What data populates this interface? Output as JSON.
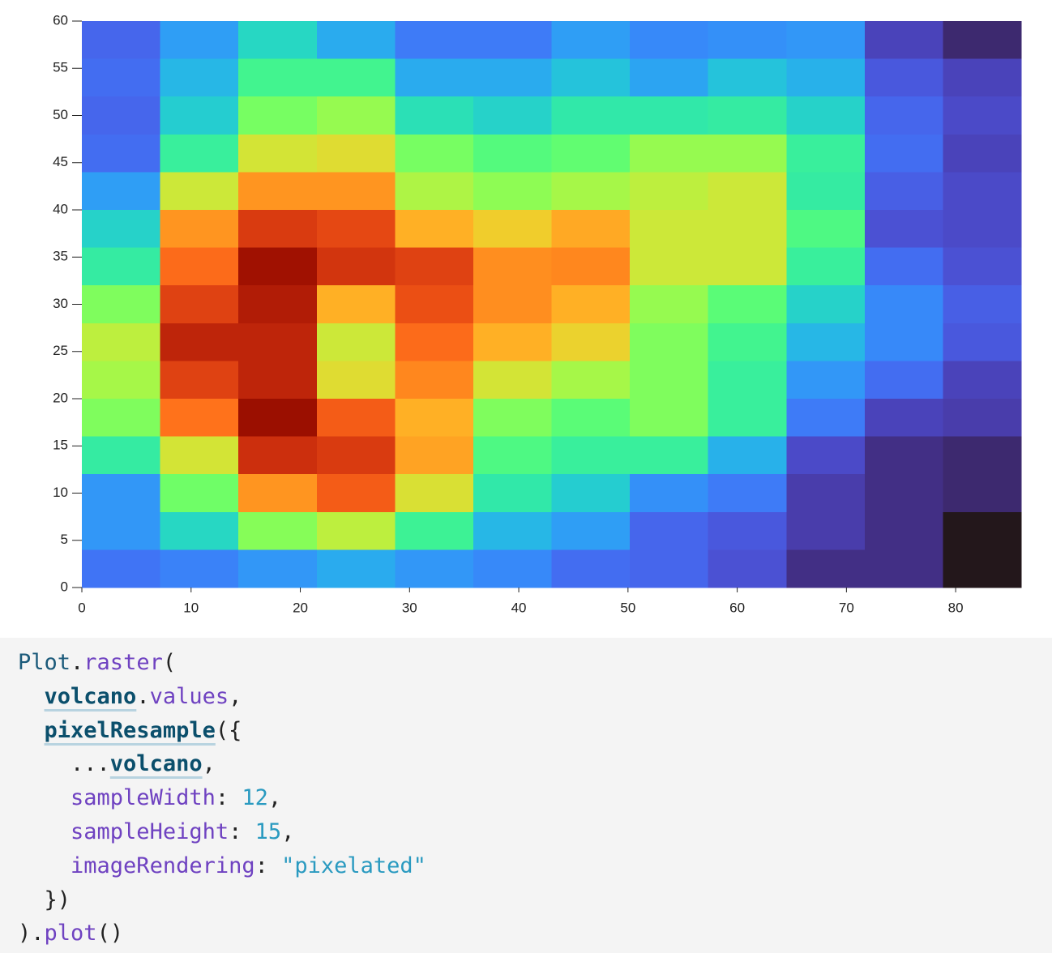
{
  "chart_data": {
    "type": "raster",
    "colormap": "turbo",
    "color_domain": [
      0,
      100
    ],
    "xlim": [
      0,
      86
    ],
    "ylim": [
      0,
      60
    ],
    "xticks": [
      0,
      10,
      20,
      30,
      40,
      50,
      60,
      70,
      80
    ],
    "yticks": [
      0,
      5,
      10,
      15,
      20,
      25,
      30,
      35,
      40,
      45,
      50,
      55,
      60
    ],
    "values": [
      [
        12,
        20,
        30,
        22,
        15,
        15,
        20,
        17,
        18,
        19,
        7,
        3
      ],
      [
        13,
        24,
        38,
        38,
        22,
        22,
        26,
        21,
        26,
        23,
        10,
        7
      ],
      [
        12,
        28,
        46,
        50,
        32,
        29,
        34,
        34,
        35,
        29,
        12,
        8
      ],
      [
        13,
        36,
        58,
        60,
        46,
        41,
        43,
        50,
        50,
        36,
        13,
        7
      ],
      [
        20,
        57,
        72,
        72,
        53,
        49,
        52,
        55,
        57,
        35,
        11,
        8
      ],
      [
        29,
        72,
        85,
        83,
        68,
        63,
        69,
        57,
        57,
        40,
        9,
        8
      ],
      [
        35,
        78,
        94,
        86,
        84,
        73,
        74,
        57,
        57,
        36,
        13,
        9
      ],
      [
        47,
        84,
        91,
        68,
        82,
        73,
        68,
        50,
        42,
        29,
        17,
        11
      ],
      [
        55,
        89,
        89,
        57,
        78,
        68,
        62,
        47,
        38,
        24,
        17,
        10
      ],
      [
        52,
        84,
        89,
        60,
        74,
        58,
        52,
        47,
        36,
        19,
        13,
        7
      ],
      [
        47,
        77,
        95,
        80,
        68,
        47,
        42,
        47,
        36,
        15,
        7,
        6
      ],
      [
        35,
        58,
        87,
        85,
        70,
        40,
        36,
        36,
        23,
        8,
        4,
        3
      ],
      [
        19,
        45,
        72,
        80,
        59,
        34,
        28,
        18,
        15,
        6,
        4,
        3
      ],
      [
        19,
        30,
        48,
        55,
        37,
        24,
        20,
        12,
        10,
        6,
        4,
        0
      ],
      [
        14,
        16,
        19,
        22,
        19,
        17,
        13,
        12,
        9,
        4,
        4,
        0
      ]
    ]
  },
  "code": {
    "lines": [
      [
        {
          "text": "Plot",
          "style": "obj"
        },
        {
          "text": ".",
          "style": "punct"
        },
        {
          "text": "raster",
          "style": "fn"
        },
        {
          "text": "(",
          "style": "punct"
        }
      ],
      [
        {
          "text": "  ",
          "style": "punct"
        },
        {
          "text": "volcano",
          "style": "var"
        },
        {
          "text": ".",
          "style": "punct"
        },
        {
          "text": "values",
          "style": "fn"
        },
        {
          "text": ",",
          "style": "punct"
        }
      ],
      [
        {
          "text": "  ",
          "style": "punct"
        },
        {
          "text": "pixelResample",
          "style": "var"
        },
        {
          "text": "({",
          "style": "punct"
        }
      ],
      [
        {
          "text": "    ...",
          "style": "punct"
        },
        {
          "text": "volcano",
          "style": "var"
        },
        {
          "text": ",",
          "style": "punct"
        }
      ],
      [
        {
          "text": "    ",
          "style": "punct"
        },
        {
          "text": "sampleWidth",
          "style": "fn"
        },
        {
          "text": ": ",
          "style": "punct"
        },
        {
          "text": "12",
          "style": "num"
        },
        {
          "text": ",",
          "style": "punct"
        }
      ],
      [
        {
          "text": "    ",
          "style": "punct"
        },
        {
          "text": "sampleHeight",
          "style": "fn"
        },
        {
          "text": ": ",
          "style": "punct"
        },
        {
          "text": "15",
          "style": "num"
        },
        {
          "text": ",",
          "style": "punct"
        }
      ],
      [
        {
          "text": "    ",
          "style": "punct"
        },
        {
          "text": "imageRendering",
          "style": "fn"
        },
        {
          "text": ": ",
          "style": "punct"
        },
        {
          "text": "\"pixelated\"",
          "style": "str"
        }
      ],
      [
        {
          "text": "  })",
          "style": "punct"
        }
      ],
      [
        {
          "text": ")",
          "style": "punct"
        },
        {
          "text": ".",
          "style": "punct"
        },
        {
          "text": "plot",
          "style": "fn"
        },
        {
          "text": "()",
          "style": "punct"
        }
      ]
    ]
  }
}
